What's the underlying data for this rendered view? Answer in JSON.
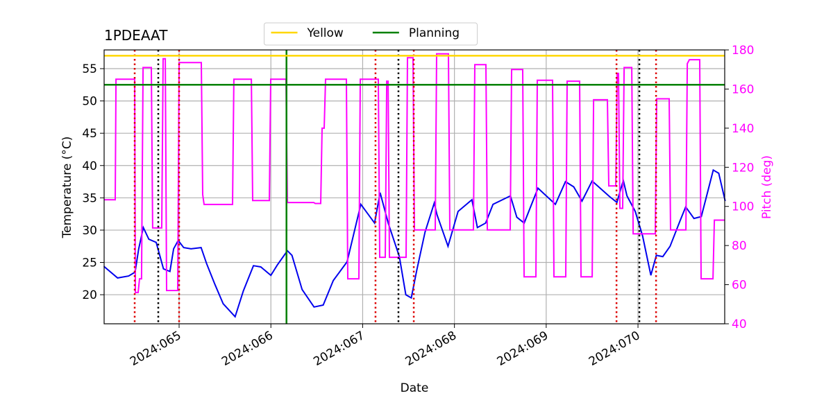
{
  "chart_data": {
    "type": "line",
    "title": "1PDEAAT",
    "xlabel": "Date",
    "ylabel": "Temperature (°C)",
    "y2label": "Pitch (deg)",
    "y2color": "#ff00ff",
    "grid": true,
    "legend": "upper center",
    "xlim": [
      64.183,
      70.945
    ],
    "xticks": [
      {
        "value": 65,
        "label": "2024:065"
      },
      {
        "value": 66,
        "label": "2024:066"
      },
      {
        "value": 67,
        "label": "2024:067"
      },
      {
        "value": 68,
        "label": "2024:068"
      },
      {
        "value": 69,
        "label": "2024:069"
      },
      {
        "value": 70,
        "label": "2024:070"
      }
    ],
    "ylim": [
      15.5,
      57.9
    ],
    "yticks": [
      20,
      25,
      30,
      35,
      40,
      45,
      50,
      55
    ],
    "y2lim": [
      40,
      180
    ],
    "y2ticks": [
      40,
      60,
      80,
      100,
      120,
      140,
      160,
      180
    ],
    "hlines": [
      {
        "name": "Yellow",
        "y": 57,
        "color": "#ffd700"
      },
      {
        "name": "Planning",
        "y": 52.5,
        "color": "#008000"
      }
    ],
    "vlines": [
      {
        "x": 66.17,
        "color": "#008000",
        "style": "solid"
      },
      {
        "x": 64.516,
        "color": "#dd0000",
        "style": "dotted"
      },
      {
        "x": 65.0,
        "color": "#dd0000",
        "style": "dotted"
      },
      {
        "x": 67.14,
        "color": "#dd0000",
        "style": "dotted"
      },
      {
        "x": 67.557,
        "color": "#dd0000",
        "style": "dotted"
      },
      {
        "x": 69.766,
        "color": "#dd0000",
        "style": "dotted"
      },
      {
        "x": 70.197,
        "color": "#dd0000",
        "style": "dotted"
      },
      {
        "x": 64.773,
        "color": "#000000",
        "style": "dotted"
      },
      {
        "x": 67.39,
        "color": "#000000",
        "style": "dotted"
      },
      {
        "x": 70.015,
        "color": "#000000",
        "style": "dotted"
      }
    ],
    "series": [
      {
        "color": "#0000ee",
        "axis": "y",
        "x": [
          64.18,
          64.33,
          64.45,
          64.52,
          64.56,
          64.61,
          64.67,
          64.75,
          64.83,
          64.9,
          64.94,
          64.99,
          65.05,
          65.13,
          65.24,
          65.3,
          65.39,
          65.48,
          65.61,
          65.7,
          65.81,
          65.89,
          66.0,
          66.07,
          66.18,
          66.23,
          66.34,
          66.47,
          66.57,
          66.68,
          66.83,
          66.98,
          67.13,
          67.19,
          67.28,
          67.4,
          67.47,
          67.53,
          67.59,
          67.68,
          67.78,
          67.81,
          67.93,
          68.04,
          68.19,
          68.25,
          68.34,
          68.42,
          68.61,
          68.68,
          68.76,
          68.91,
          69.1,
          69.21,
          69.3,
          69.39,
          69.5,
          69.69,
          69.77,
          69.84,
          69.88,
          69.97,
          70.05,
          70.14,
          70.2,
          70.27,
          70.35,
          70.46,
          70.52,
          70.61,
          70.69,
          70.82,
          70.88,
          70.95
        ],
        "values": [
          24.4,
          22.6,
          22.9,
          23.5,
          27.1,
          30.4,
          28.6,
          28.1,
          24.0,
          23.6,
          27.1,
          28.4,
          27.3,
          27.1,
          27.3,
          24.8,
          21.6,
          18.6,
          16.6,
          20.6,
          24.5,
          24.3,
          23.0,
          24.6,
          26.8,
          26.1,
          20.8,
          18.1,
          18.4,
          22.2,
          25.1,
          34.0,
          31.1,
          35.8,
          31.0,
          25.9,
          20.0,
          19.5,
          23.8,
          29.7,
          34.2,
          32.4,
          27.5,
          32.9,
          34.7,
          30.4,
          31.1,
          34.0,
          35.3,
          32.0,
          31.1,
          36.5,
          34.0,
          37.5,
          36.7,
          34.5,
          37.6,
          35.2,
          34.3,
          37.7,
          35.3,
          32.9,
          29.1,
          23.0,
          26.1,
          25.9,
          27.5,
          31.5,
          33.6,
          31.8,
          32.1,
          39.3,
          38.8,
          34.5
        ]
      },
      {
        "color": "#ff00ff",
        "axis": "y2",
        "x": [
          64.183,
          64.304,
          64.312,
          64.516,
          64.523,
          64.554,
          64.569,
          64.591,
          64.607,
          64.697,
          64.712,
          64.811,
          64.826,
          64.849,
          64.864,
          64.985,
          65.0,
          65.242,
          65.257,
          65.272,
          65.582,
          65.597,
          65.787,
          65.802,
          65.983,
          65.998,
          66.165,
          66.18,
          66.467,
          66.483,
          66.543,
          66.558,
          66.581,
          66.596,
          66.823,
          66.838,
          66.959,
          66.974,
          67.171,
          67.186,
          67.246,
          67.262,
          67.277,
          67.292,
          67.473,
          67.488,
          67.549,
          67.564,
          67.791,
          67.806,
          67.935,
          67.95,
          68.207,
          68.222,
          68.343,
          68.358,
          68.608,
          68.623,
          68.744,
          68.759,
          68.888,
          68.903,
          69.069,
          69.084,
          69.213,
          69.228,
          69.364,
          69.379,
          69.501,
          69.516,
          69.667,
          69.682,
          69.758,
          69.773,
          69.788,
          69.803,
          69.833,
          69.849,
          69.932,
          69.947,
          70.189,
          70.204,
          70.34,
          70.355,
          70.522,
          70.537,
          70.56,
          70.673,
          70.688,
          70.817,
          70.832,
          70.945
        ],
        "values": [
          103.4,
          103.4,
          165,
          165,
          56,
          56,
          63,
          63,
          171,
          171,
          89,
          89,
          175.5,
          175.5,
          57,
          57,
          173.5,
          173.5,
          106,
          101,
          101,
          165,
          165,
          103,
          103,
          165,
          165,
          102,
          102,
          101.5,
          101.5,
          140,
          140,
          165,
          165,
          63,
          63,
          165,
          165,
          74,
          74,
          164,
          164,
          74,
          74,
          176,
          176,
          88,
          88,
          178,
          178,
          88,
          88,
          172.5,
          172.5,
          88,
          88,
          170,
          170,
          64,
          64,
          164.5,
          164.5,
          64,
          64,
          164,
          164,
          64,
          64,
          154.5,
          154.5,
          110.5,
          110.5,
          168,
          168,
          99,
          99,
          171,
          171,
          86,
          86,
          155,
          155,
          88,
          88,
          173,
          175,
          175,
          63,
          63,
          93,
          93
        ]
      }
    ]
  }
}
